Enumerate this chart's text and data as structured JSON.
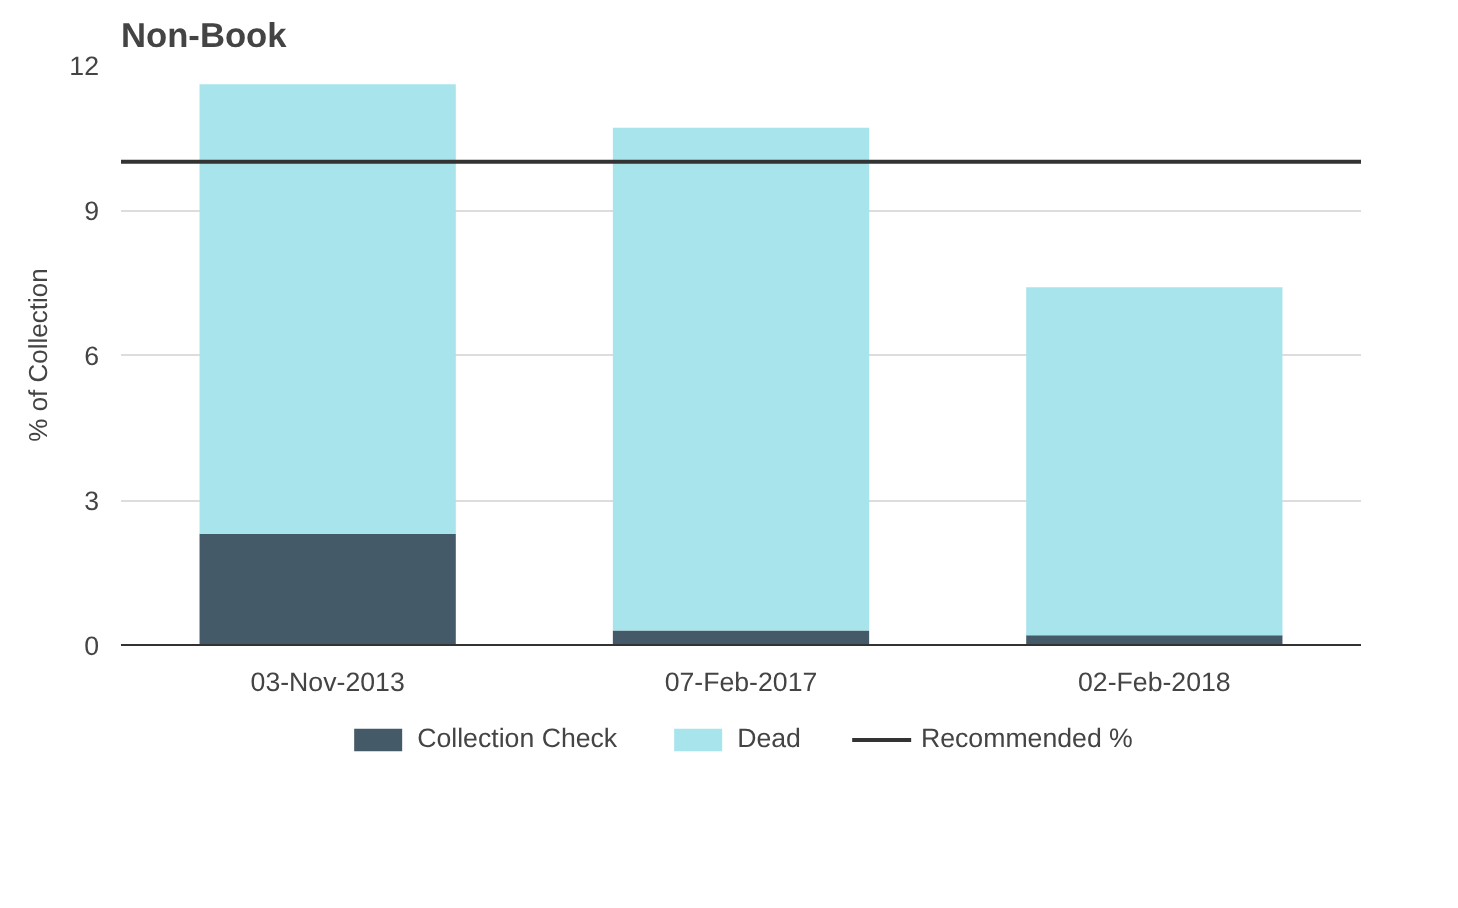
{
  "chart_data": {
    "type": "bar",
    "title": "Non-Book",
    "ylabel": "% of Collection",
    "stacked": true,
    "categories": [
      "03-Nov-2013",
      "07-Feb-2017",
      "02-Feb-2018"
    ],
    "series": [
      {
        "name": "Collection Check",
        "color": "#455a68",
        "values": [
          2.3,
          0.3,
          0.2
        ]
      },
      {
        "name": "Dead",
        "color": "#a8e4ec",
        "values": [
          9.3,
          10.4,
          7.2
        ]
      }
    ],
    "ref_lines": [
      {
        "axis": "y",
        "value": 10,
        "label": "Recommended %",
        "color": "#333333"
      }
    ],
    "ylim": [
      0,
      12
    ],
    "yticks": [
      0,
      3,
      6,
      9,
      12
    ],
    "grid": "y",
    "legend": "bottom"
  }
}
